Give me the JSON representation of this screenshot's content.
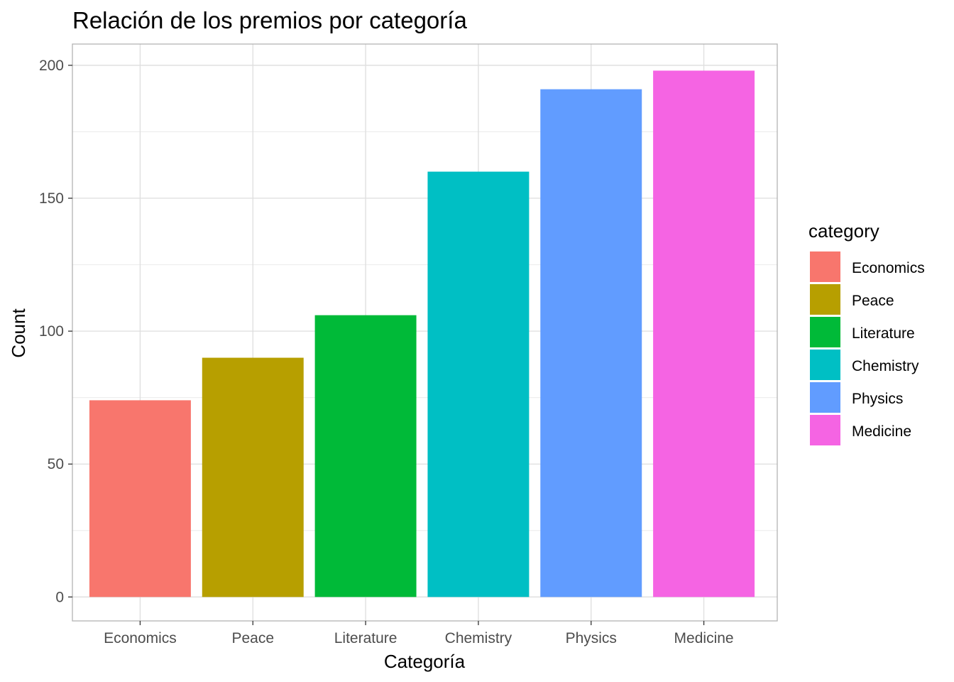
{
  "chart_data": {
    "type": "bar",
    "title": "Relación de los premios por categoría",
    "xlabel": "Categoría",
    "ylabel": "Count",
    "categories": [
      "Economics",
      "Peace",
      "Literature",
      "Chemistry",
      "Physics",
      "Medicine"
    ],
    "values": [
      74,
      90,
      106,
      160,
      191,
      198
    ],
    "colors": [
      "#F8766D",
      "#B79F00",
      "#00BA38",
      "#00BFC4",
      "#619CFF",
      "#F564E3"
    ],
    "ylim": [
      -9,
      208
    ],
    "yticks": [
      0,
      50,
      100,
      150,
      200
    ],
    "grid": true,
    "legend": {
      "title": "category",
      "position": "right",
      "entries": [
        "Economics",
        "Peace",
        "Literature",
        "Chemistry",
        "Physics",
        "Medicine"
      ]
    }
  }
}
